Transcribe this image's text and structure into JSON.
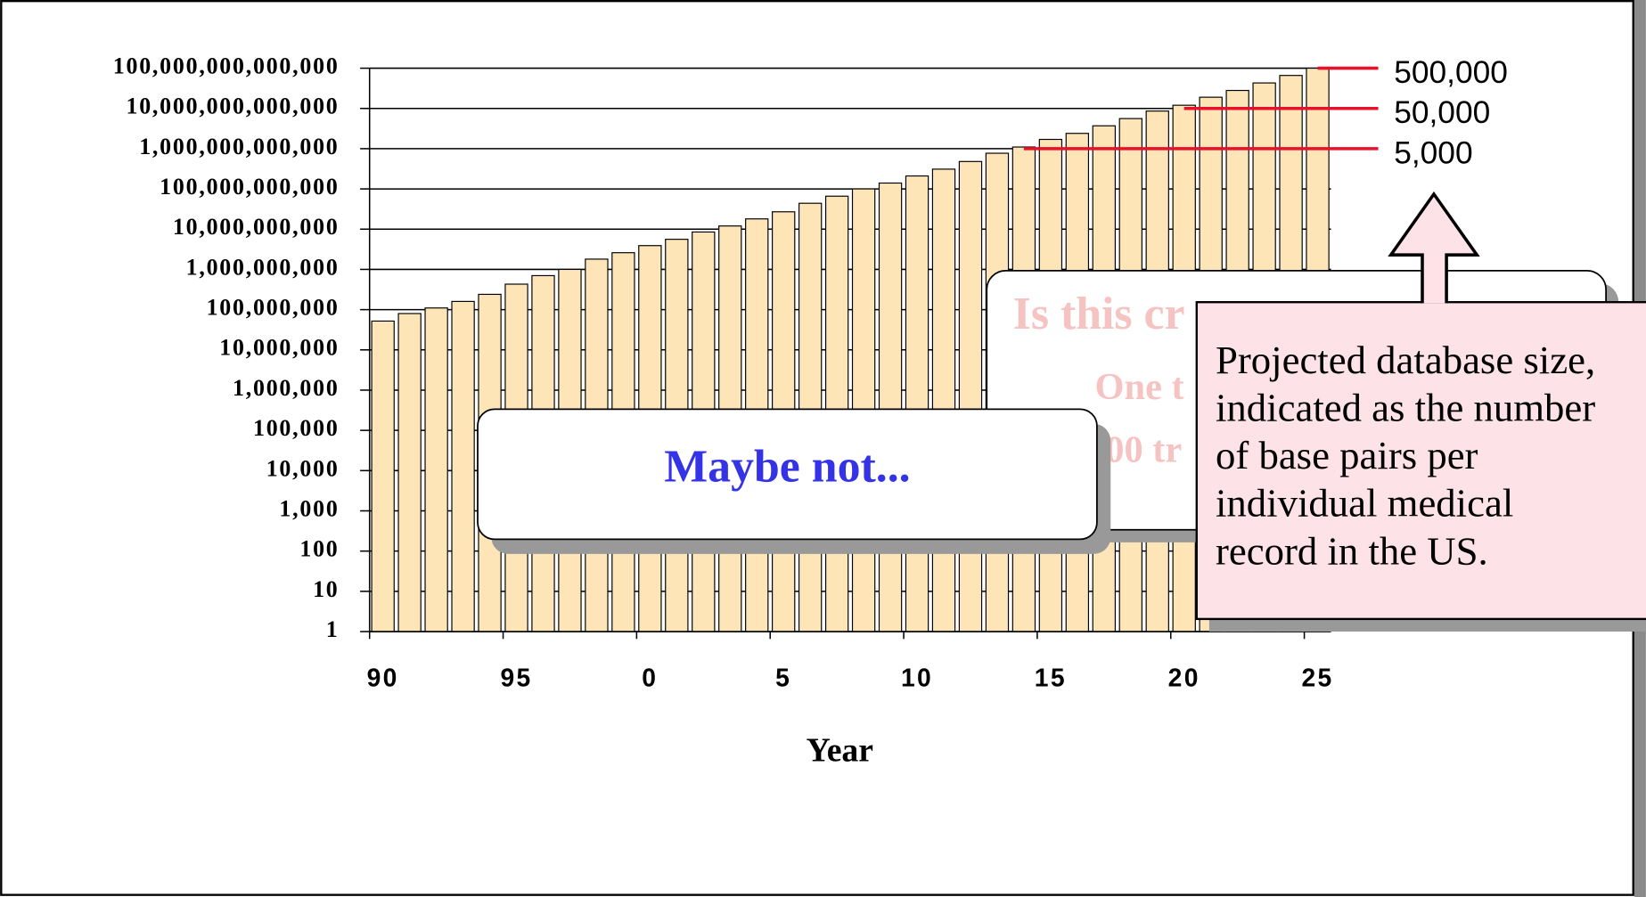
{
  "chart_data": {
    "type": "bar",
    "x_label": "Year",
    "log_scale": true,
    "grid": true,
    "color": "#fde5b8",
    "categories": [
      "90",
      null,
      null,
      null,
      null,
      "95",
      null,
      null,
      null,
      null,
      "0",
      null,
      null,
      null,
      null,
      "5",
      null,
      null,
      null,
      null,
      "10",
      null,
      null,
      null,
      null,
      "15",
      null,
      null,
      null,
      null,
      "20",
      null,
      null,
      null,
      null,
      "25"
    ],
    "values": [
      52000000,
      80000000,
      110000000,
      160000000,
      240000000,
      430000000,
      700000000,
      1000000000,
      1800000000,
      2600000000,
      3900000000,
      5600000000,
      8500000000,
      12000000000,
      18000000000,
      27000000000,
      44000000000,
      66000000000,
      100000000000,
      140000000000,
      210000000000,
      310000000000,
      480000000000,
      770000000000,
      1100000000000,
      1700000000000,
      2400000000000,
      3700000000000,
      5600000000000,
      8600000000000,
      12000000000000,
      19000000000000,
      28000000000000,
      43000000000000,
      66000000000000,
      100000000000000
    ],
    "ylim": [
      1,
      100000000000000
    ],
    "yticks": [
      1,
      10,
      100,
      {
        "value": 1000,
        "label": "1,000"
      },
      {
        "value": 10000,
        "label": "10,000"
      },
      {
        "value": 100000,
        "label": "100,000"
      },
      {
        "value": 1000000,
        "label": "1,000,000"
      },
      {
        "value": 10000000,
        "label": "10,000,000"
      },
      {
        "value": 100000000,
        "label": "100,000,000"
      },
      {
        "value": 1000000000,
        "label": "1,000,000,000"
      },
      {
        "value": 10000000000,
        "label": "10,000,000,000"
      },
      {
        "value": 100000000000,
        "label": "100,000,000,000"
      },
      {
        "value": 1000000000000,
        "label": "1,000,000,000,000"
      },
      {
        "value": 10000000000000,
        "label": "10,000,000,000,000"
      },
      {
        "value": 100000000000000,
        "label": "100,000,000,000,000"
      }
    ],
    "reference_lines": [
      {
        "label": "500,000",
        "value": 100000000000000,
        "color": "#e8102a"
      },
      {
        "label": "50,000",
        "value": 10000000000000,
        "color": "#e8102a"
      },
      {
        "label": "5,000",
        "value": 1000000000000,
        "color": "#e8102a"
      }
    ]
  },
  "overlay_box": {
    "title": "Is this cr",
    "line1": "One t",
    "line2": "00 tr"
  },
  "maybe_box": {
    "text": "Maybe not..."
  },
  "callout": {
    "lines": [
      "Projected database size,",
      "indicated as the number",
      "of base pairs per",
      "individual medical",
      "record in the US."
    ]
  }
}
